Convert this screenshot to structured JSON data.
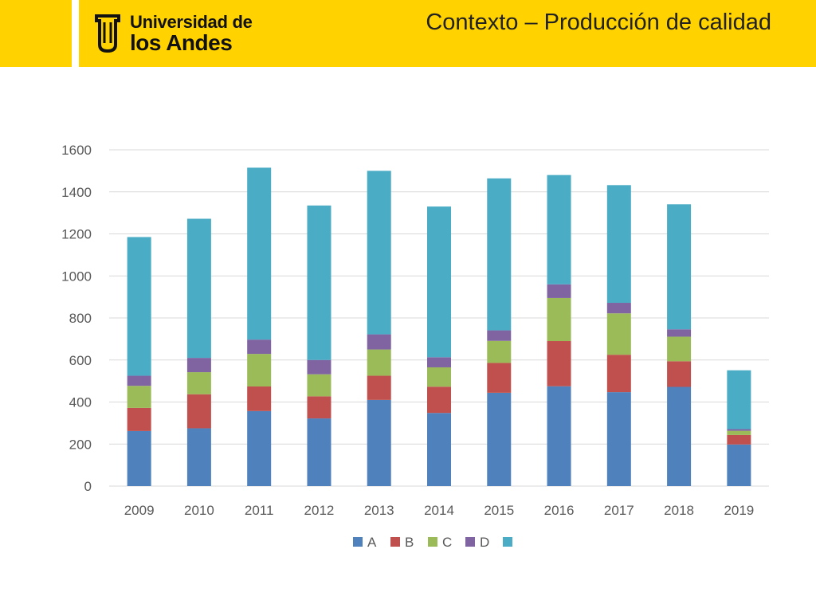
{
  "header": {
    "logo_line1": "Universidad de",
    "logo_line2": "los Andes",
    "title": "Contexto – Producción de calidad"
  },
  "colors": {
    "brand_yellow": "#FFD200",
    "grid": "#D9D9D9",
    "tick_text": "#595959"
  },
  "chart_data": {
    "type": "bar",
    "stacked": true,
    "categories": [
      "2009",
      "2010",
      "2011",
      "2012",
      "2013",
      "2014",
      "2015",
      "2016",
      "2017",
      "2018",
      "2019"
    ],
    "series": [
      {
        "name": "A",
        "color": "#4F81BD",
        "values": [
          262,
          275,
          357,
          322,
          410,
          348,
          444,
          475,
          447,
          472,
          198
        ]
      },
      {
        "name": "B",
        "color": "#C0504D",
        "values": [
          110,
          162,
          117,
          105,
          115,
          125,
          142,
          215,
          178,
          122,
          45
        ]
      },
      {
        "name": "C",
        "color": "#9BBB59",
        "values": [
          105,
          105,
          155,
          105,
          125,
          92,
          105,
          205,
          197,
          117,
          20
        ]
      },
      {
        "name": "D",
        "color": "#8064A2",
        "values": [
          48,
          68,
          68,
          68,
          72,
          48,
          50,
          65,
          50,
          35,
          8
        ]
      },
      {
        "name": "",
        "color": "#4BACC6",
        "values": [
          660,
          662,
          818,
          735,
          778,
          717,
          723,
          520,
          560,
          595,
          280
        ]
      }
    ],
    "ylim": [
      0,
      1600
    ],
    "yticks": [
      0,
      200,
      400,
      600,
      800,
      1000,
      1200,
      1400,
      1600
    ],
    "grid": true,
    "legend_position": "bottom",
    "title": "",
    "xlabel": "",
    "ylabel": ""
  }
}
